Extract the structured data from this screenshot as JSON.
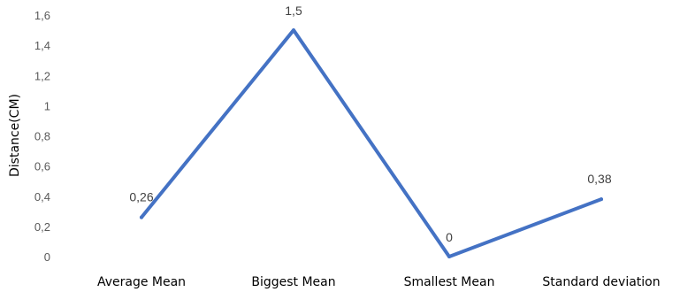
{
  "chart_data": {
    "type": "line",
    "categories": [
      "Average Mean",
      "Biggest Mean",
      "Smallest Mean",
      "Standard deviation"
    ],
    "series": [
      {
        "values": [
          0.26,
          1.5,
          0,
          0.38
        ]
      }
    ],
    "data_labels": [
      "0,26",
      "1,5",
      "0",
      "0,38"
    ],
    "ylabel": "Distance(CM)",
    "ylim": [
      0,
      1.6
    ],
    "yticks": [
      0,
      0.2,
      0.4,
      0.6,
      0.8,
      1,
      1.2,
      1.4,
      1.6
    ],
    "ytick_labels": [
      "0",
      "0,2",
      "0,4",
      "0,6",
      "0,8",
      "1",
      "1,2",
      "1,4",
      "1,6"
    ],
    "grid": false,
    "legend": "none",
    "line_color": "#4472C4"
  }
}
